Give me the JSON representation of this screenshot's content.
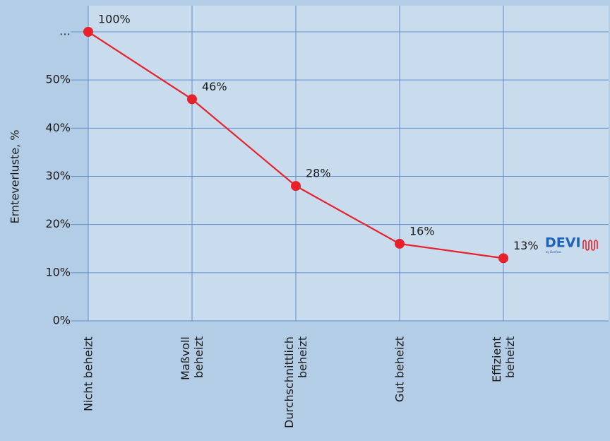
{
  "chart_data": {
    "type": "line",
    "y_label": "Ernteverluste, %",
    "categories": [
      "Nicht beheizt",
      "Maßvoll\nbeheizt",
      "Durchschnittlich\nbeheizt",
      "Gut beheizt",
      "Effizient\nbeheizt"
    ],
    "values": [
      100,
      46,
      28,
      16,
      13
    ],
    "value_labels": [
      "100%",
      "46%",
      "28%",
      "16%",
      "13%"
    ],
    "color": "#e8202a",
    "ylim": [
      0,
      100
    ],
    "yticks": [
      {
        "value": 0,
        "label": "0%"
      },
      {
        "value": 10,
        "label": "10%"
      },
      {
        "value": 20,
        "label": "20%"
      },
      {
        "value": 30,
        "label": "30%"
      },
      {
        "value": 40,
        "label": "40%"
      },
      {
        "value": 50,
        "label": "50%"
      },
      {
        "value": 100,
        "label": "…"
      }
    ],
    "grid": true,
    "logo": {
      "name": "DEVI",
      "sub": "by Danfoss"
    }
  }
}
